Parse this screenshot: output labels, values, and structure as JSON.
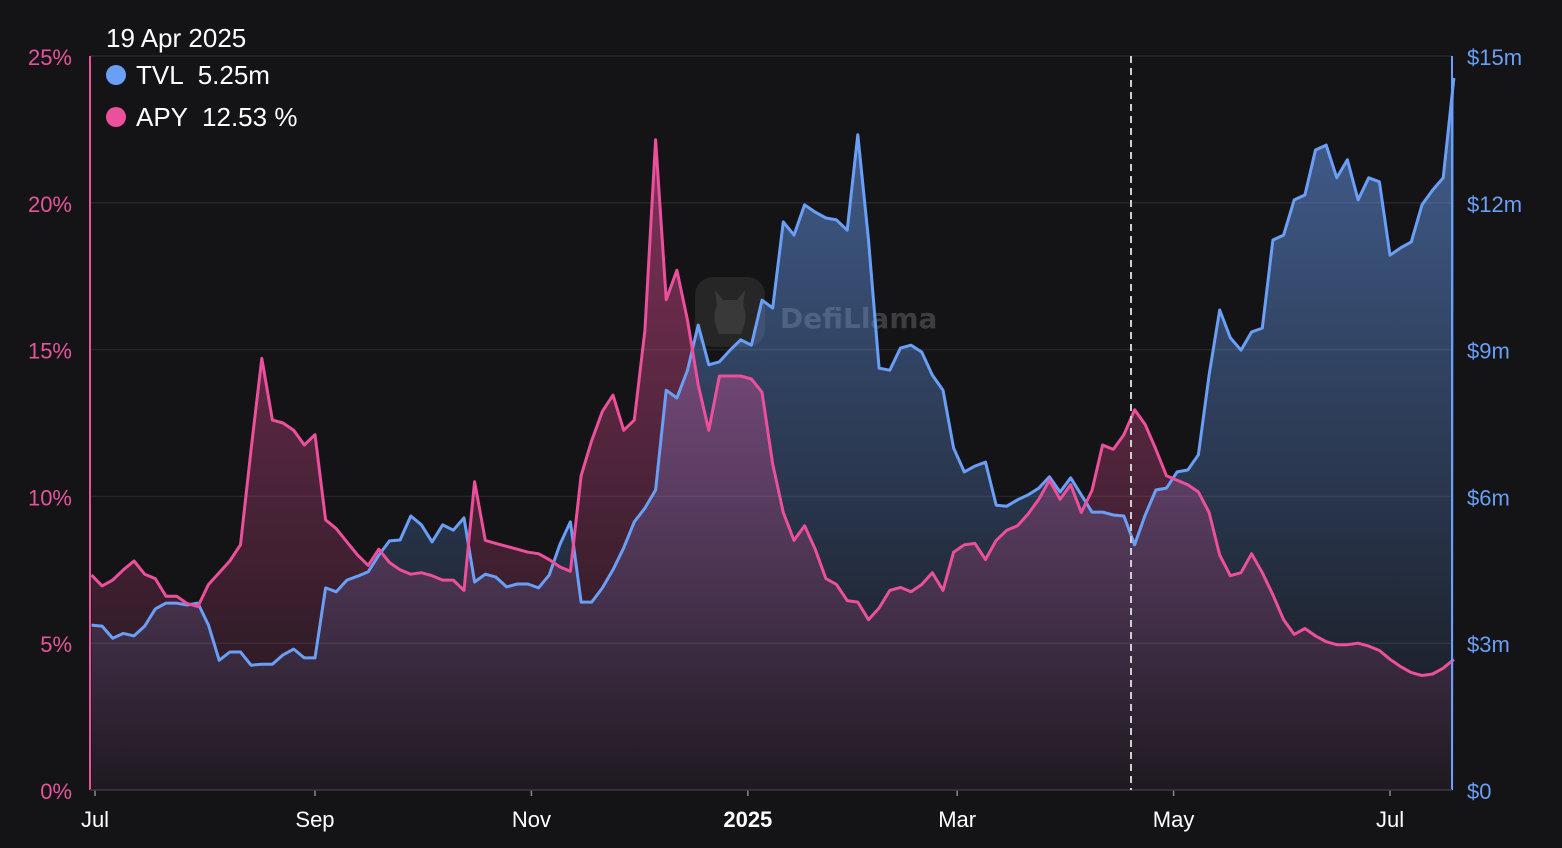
{
  "chart_data": {
    "type": "line",
    "title": "",
    "x_start_date": "2024-06-30",
    "x_step_days": 3,
    "x_range_days_from_2024_07_01": [
      -1,
      383
    ],
    "x_tick_labels": [
      {
        "label": "Jul",
        "day": 0,
        "bold": false
      },
      {
        "label": "Sep",
        "day": 62,
        "bold": false
      },
      {
        "label": "Nov",
        "day": 123,
        "bold": false
      },
      {
        "label": "2025",
        "day": 184,
        "bold": true
      },
      {
        "label": "Mar",
        "day": 243,
        "bold": false
      },
      {
        "label": "May",
        "day": 304,
        "bold": false
      },
      {
        "label": "Jul",
        "day": 365,
        "bold": false
      }
    ],
    "y_left": {
      "name": "APY",
      "unit": "%",
      "range": [
        0,
        25
      ],
      "ticks": [
        0,
        5,
        10,
        15,
        20,
        25
      ],
      "tick_labels": [
        "0%",
        "5%",
        "10%",
        "15%",
        "20%",
        "25%"
      ]
    },
    "y_right": {
      "name": "TVL",
      "unit": "$m",
      "range": [
        0,
        15
      ],
      "ticks": [
        0,
        3,
        6,
        9,
        12,
        15
      ],
      "tick_labels": [
        "$0",
        "$3m",
        "$6m",
        "$9m",
        "$12m",
        "$15m"
      ]
    },
    "grid": true,
    "series": [
      {
        "name": "TVL",
        "axis": "right",
        "color": "#6a9ff7",
        "values": [
          3.37,
          3.35,
          3.1,
          3.2,
          3.15,
          3.35,
          3.7,
          3.82,
          3.82,
          3.78,
          3.82,
          3.37,
          2.65,
          2.82,
          2.82,
          2.55,
          2.57,
          2.57,
          2.76,
          2.88,
          2.7,
          2.7,
          4.13,
          4.05,
          4.29,
          4.37,
          4.46,
          4.8,
          5.09,
          5.11,
          5.6,
          5.42,
          5.07,
          5.42,
          5.31,
          5.56,
          4.25,
          4.41,
          4.35,
          4.15,
          4.21,
          4.21,
          4.13,
          4.39,
          5.01,
          5.48,
          3.84,
          3.84,
          4.13,
          4.5,
          4.95,
          5.48,
          5.76,
          6.13,
          8.17,
          8.01,
          8.58,
          9.5,
          8.69,
          8.75,
          8.99,
          9.2,
          9.09,
          10.01,
          9.85,
          11.61,
          11.34,
          11.96,
          11.81,
          11.69,
          11.65,
          11.44,
          13.39,
          11.24,
          8.62,
          8.58,
          9.03,
          9.09,
          8.95,
          8.48,
          8.17,
          6.99,
          6.5,
          6.62,
          6.7,
          5.82,
          5.8,
          5.93,
          6.03,
          6.17,
          6.4,
          6.09,
          6.38,
          6.03,
          5.68,
          5.68,
          5.62,
          5.6,
          5.01,
          5.62,
          6.13,
          6.17,
          6.5,
          6.54,
          6.85,
          8.48,
          9.81,
          9.24,
          8.99,
          9.36,
          9.44,
          11.24,
          11.34,
          12.06,
          12.16,
          13.08,
          13.18,
          12.51,
          12.88,
          12.06,
          12.51,
          12.43,
          10.93,
          11.08,
          11.2,
          11.96,
          12.26,
          12.51,
          14.55
        ]
      },
      {
        "name": "APY",
        "axis": "left",
        "color": "#ec4f9b",
        "values": [
          7.32,
          6.95,
          7.15,
          7.5,
          7.8,
          7.35,
          7.2,
          6.6,
          6.6,
          6.35,
          6.25,
          7.0,
          7.4,
          7.8,
          8.35,
          11.6,
          14.7,
          12.6,
          12.5,
          12.25,
          11.75,
          12.1,
          9.2,
          8.9,
          8.45,
          8.0,
          7.65,
          8.2,
          7.75,
          7.5,
          7.35,
          7.4,
          7.3,
          7.15,
          7.15,
          6.8,
          10.5,
          8.5,
          8.4,
          8.3,
          8.2,
          8.1,
          8.05,
          7.85,
          7.6,
          7.45,
          10.7,
          11.9,
          12.9,
          13.45,
          12.25,
          12.6,
          15.65,
          22.15,
          16.7,
          17.7,
          16.0,
          13.8,
          12.25,
          14.1,
          14.1,
          14.1,
          14.0,
          13.55,
          11.1,
          9.45,
          8.5,
          9.0,
          8.2,
          7.2,
          7.0,
          6.45,
          6.4,
          5.8,
          6.2,
          6.8,
          6.9,
          6.75,
          7.0,
          7.4,
          6.8,
          8.1,
          8.35,
          8.4,
          7.85,
          8.5,
          8.85,
          9.0,
          9.4,
          9.9,
          10.55,
          9.9,
          10.4,
          9.45,
          10.2,
          11.75,
          11.6,
          12.1,
          12.95,
          12.45,
          11.6,
          10.7,
          10.55,
          10.4,
          10.15,
          9.45,
          8.0,
          7.3,
          7.4,
          8.05,
          7.4,
          6.65,
          5.8,
          5.3,
          5.5,
          5.25,
          5.05,
          4.95,
          4.95,
          5.0,
          4.9,
          4.75,
          4.45,
          4.2,
          4.0,
          3.9,
          3.95,
          4.15,
          4.45
        ]
      }
    ],
    "crosshair_day": 292,
    "tooltip": {
      "date": "19 Apr 2025",
      "tvl_label": "TVL",
      "tvl_value": "5.25m",
      "apy_label": "APY",
      "apy_value": "12.53 %"
    },
    "watermark": "DefiLlama"
  }
}
